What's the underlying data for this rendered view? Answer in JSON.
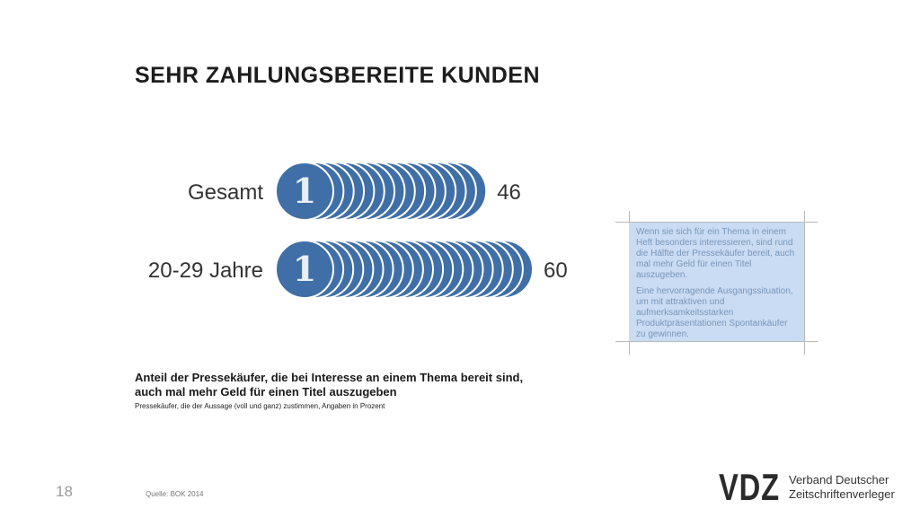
{
  "slide": {
    "title": "SEHR ZAHLUNGSBEREITE KUNDEN",
    "page_number": "18",
    "source": "Quelle: BOK 2014"
  },
  "caption": {
    "title_line1": "Anteil der Pressekäufer, die bei Interesse an einem Thema bereit sind,",
    "title_line2": "auch mal mehr Geld für einen Titel auszugeben",
    "subtitle": "Pressekäufer, die der Aussage (voll und ganz) zustimmen, Angaben in Prozent"
  },
  "info_box": {
    "paragraph1": "Wenn sie sich für ein Thema in einem Heft besonders interessieren, sind rund die Hälfte der Pressekäufer bereit, auch mal mehr Geld für einen Titel auszugeben.",
    "paragraph2": "Eine hervorragende Ausgangssituation, um mit attraktiven und aufmerksamkeitsstarken Produktpräsentationen Spontankäufer zu gewinnen."
  },
  "logo": {
    "mark": "VDZ",
    "line1": "Verband Deutscher",
    "line2": "Zeitschriftenverleger"
  },
  "colors": {
    "coin_fill": "#3f6fa6",
    "coin_edge": "#ffffff",
    "info_box_bg": "#c9dcf3",
    "info_box_text": "#7a96b8"
  },
  "chart_data": {
    "type": "bar",
    "coin_glyph": "1",
    "categories": [
      "Gesamt",
      "20-29 Jahre"
    ],
    "values": [
      46,
      60
    ],
    "value_labels": [
      "46",
      "60"
    ],
    "unit": "Prozent"
  }
}
